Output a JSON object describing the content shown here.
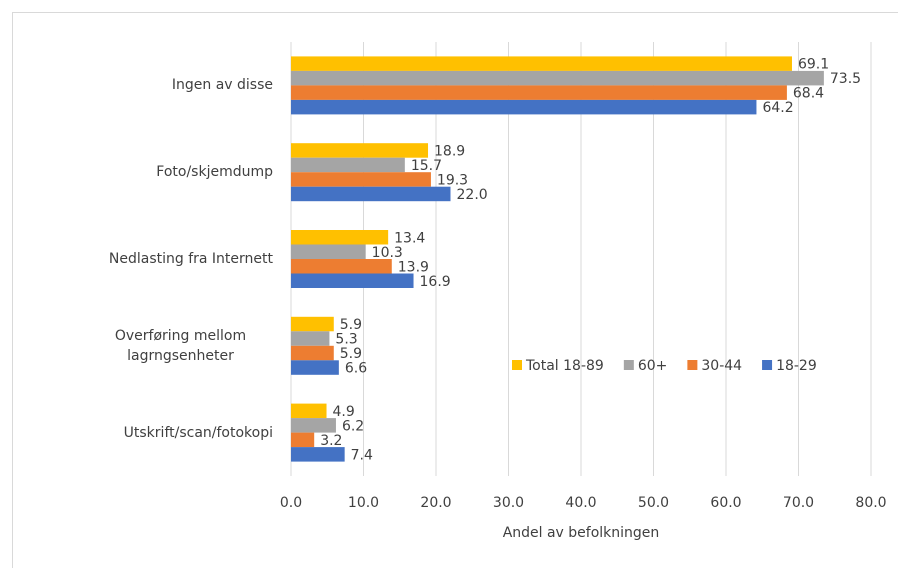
{
  "chart_data": {
    "type": "hbar",
    "categories": [
      "Ingen av disse",
      "Foto/skjemdump",
      "Nedlasting fra Internett",
      "Overføring mellom lagrngsenheter",
      "Utskrift/scan/fotokopi"
    ],
    "series": [
      {
        "name": "Total 18-89",
        "color": "#FFC000",
        "values": [
          69.1,
          18.9,
          13.4,
          5.9,
          4.9
        ],
        "value_labels": [
          "69.1",
          "18.9",
          "13.4",
          "5.9",
          "4.9"
        ]
      },
      {
        "name": "60+",
        "color": "#A5A5A5",
        "values": [
          73.5,
          15.7,
          10.3,
          5.3,
          6.2
        ],
        "value_labels": [
          "73.5",
          "15.7",
          "10.3",
          "5.3",
          "6.2"
        ]
      },
      {
        "name": "30-44",
        "color": "#ED7D31",
        "values": [
          68.4,
          19.3,
          13.9,
          5.9,
          3.2
        ],
        "value_labels": [
          "68.4",
          "19.3",
          "13.9",
          "5.9",
          "3.2"
        ]
      },
      {
        "name": "18-29",
        "color": "#4472C4",
        "values": [
          64.2,
          22.0,
          16.9,
          6.6,
          7.4
        ],
        "value_labels": [
          "64.2",
          "22.0",
          "16.9",
          "6.6",
          "7.4"
        ]
      }
    ],
    "x_label": "Andel av befolkningen",
    "xlim": [
      0,
      80
    ],
    "xticks": [
      {
        "value": 0,
        "label": "0.0"
      },
      {
        "value": 10,
        "label": "10.0"
      },
      {
        "value": 20,
        "label": "20.0"
      },
      {
        "value": 30,
        "label": "30.0"
      },
      {
        "value": 40,
        "label": "40.0"
      },
      {
        "value": 50,
        "label": "50.0"
      },
      {
        "value": 60,
        "label": "60.0"
      },
      {
        "value": 70,
        "label": "70.0"
      },
      {
        "value": 80,
        "label": "80.0"
      }
    ],
    "grid": true,
    "legend": "right"
  }
}
